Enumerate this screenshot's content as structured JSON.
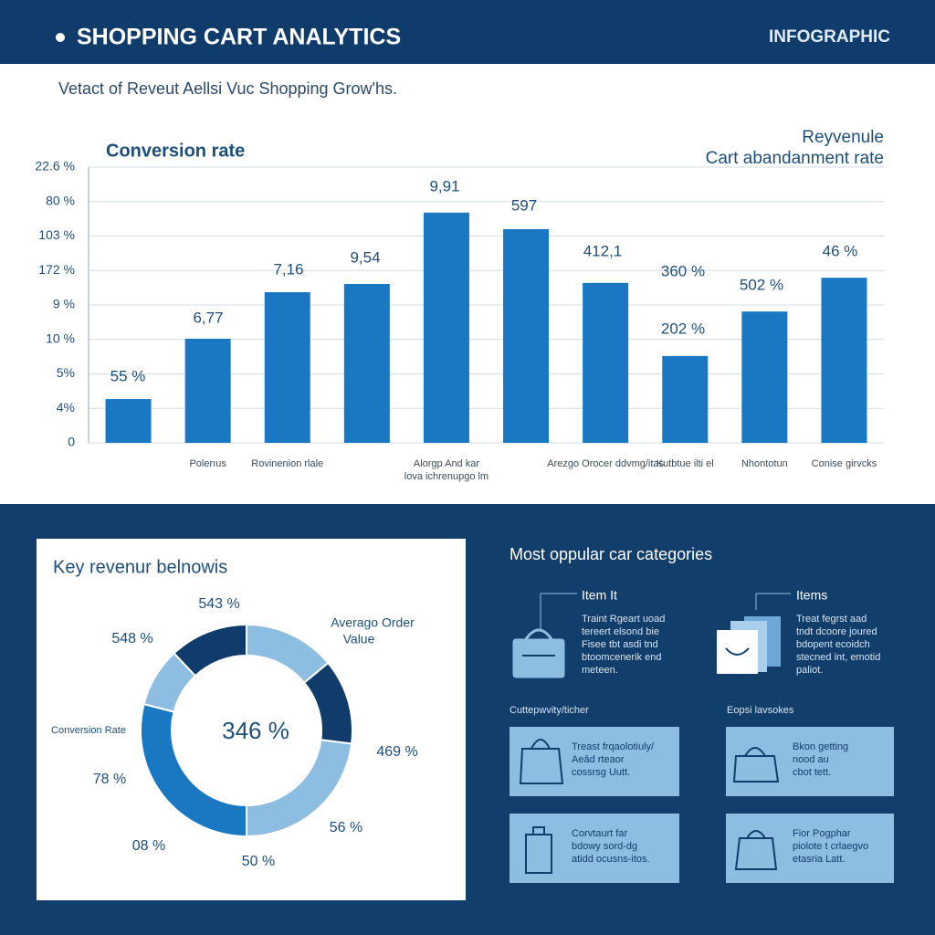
{
  "header": {
    "title": "SHOPPING CART ANALYTICS",
    "tag": "INFOGRAPHIC"
  },
  "subtitle": "Vetact of Reveut Aellsi Vuc Shopping Grow'hs.",
  "chart_data": [
    {
      "type": "bar",
      "title": "Conversion rate",
      "legend_texts": [
        "Reyvenule",
        "Cart abandanment rate"
      ],
      "categories": [
        null,
        "Polerıus",
        "Rovinenion rlale",
        null,
        "Alorgp And kar lova ichrenupgo lm",
        null,
        "Arezgo Orocer ddvmg/itas",
        "Kutbtue ilti el",
        "Nhontotun",
        "Conise girvcks"
      ],
      "values": [
        1.27,
        3.02,
        4.37,
        4.61,
        6.68,
        6.2,
        4.64,
        2.52,
        3.81,
        4.79
      ],
      "color": "#1a78c2",
      "ylim": [
        0,
        8
      ],
      "yticks": [
        {
          "value": 0,
          "label": "0"
        },
        {
          "value": 1,
          "label": "4%"
        },
        {
          "value": 2,
          "label": "5%"
        },
        {
          "value": 3,
          "label": "10 %"
        },
        {
          "value": 4,
          "label": "9 %"
        },
        {
          "value": 5,
          "label": "172 %"
        },
        {
          "value": 6,
          "label": "103 %"
        },
        {
          "value": 7,
          "label": "80 %"
        },
        {
          "value": 8,
          "label": "22.6 %"
        }
      ],
      "grid": true,
      "annotations": [
        "55 %",
        "6,77",
        "7,16",
        "9,54",
        "9,91",
        "597",
        "412,1",
        "360 %",
        "202 %",
        "502 %",
        "46 %"
      ]
    },
    {
      "type": "donut",
      "title": "Key revenur belnowis",
      "center_label": "346 %",
      "values": [
        14,
        13,
        23,
        29,
        9,
        12
      ],
      "colors": [
        "#8dbde0",
        "#0f3c6a",
        "#8dbde0",
        "#1a78c2",
        "#8dbde0",
        "#0f3c6a"
      ],
      "annotations": [
        "543 %",
        "Averago Order",
        "Value",
        "548 %",
        "Conversion Rate",
        "469 %",
        "78 %",
        "08 %",
        "50 %",
        "56 %"
      ]
    }
  ],
  "categories_panel": {
    "title": "Most oppular car categories",
    "items": [
      {
        "title": "Item It",
        "lines": [
          "Traint Rgeart uoad",
          "tereert elsond bie",
          "Fisee tbt asdi tnd",
          "btoomcenerik end",
          "meteen."
        ]
      },
      {
        "title": "Items",
        "lines": [
          "Treat fegrst aad",
          "tndt dcoore joured",
          "bdopent ecoidch",
          "stecned int, emotid",
          "paliot."
        ]
      }
    ],
    "sections": [
      "Cuttepwvity/ticher",
      "Eopsi lavsokes"
    ],
    "cards": [
      [
        "Treast frqaolotiuly/",
        "Aeâd rteaor",
        "cossrsg Uutt."
      ],
      [
        "Bkon getting",
        "nood au",
        "cbot tett."
      ],
      [
        "Corvtaurt far",
        "bdowy sord-dg",
        "atidd ocusns-itos."
      ],
      [
        "Fior Pogphar",
        "piolote t crlaegvo",
        "etasria Latt."
      ]
    ]
  }
}
